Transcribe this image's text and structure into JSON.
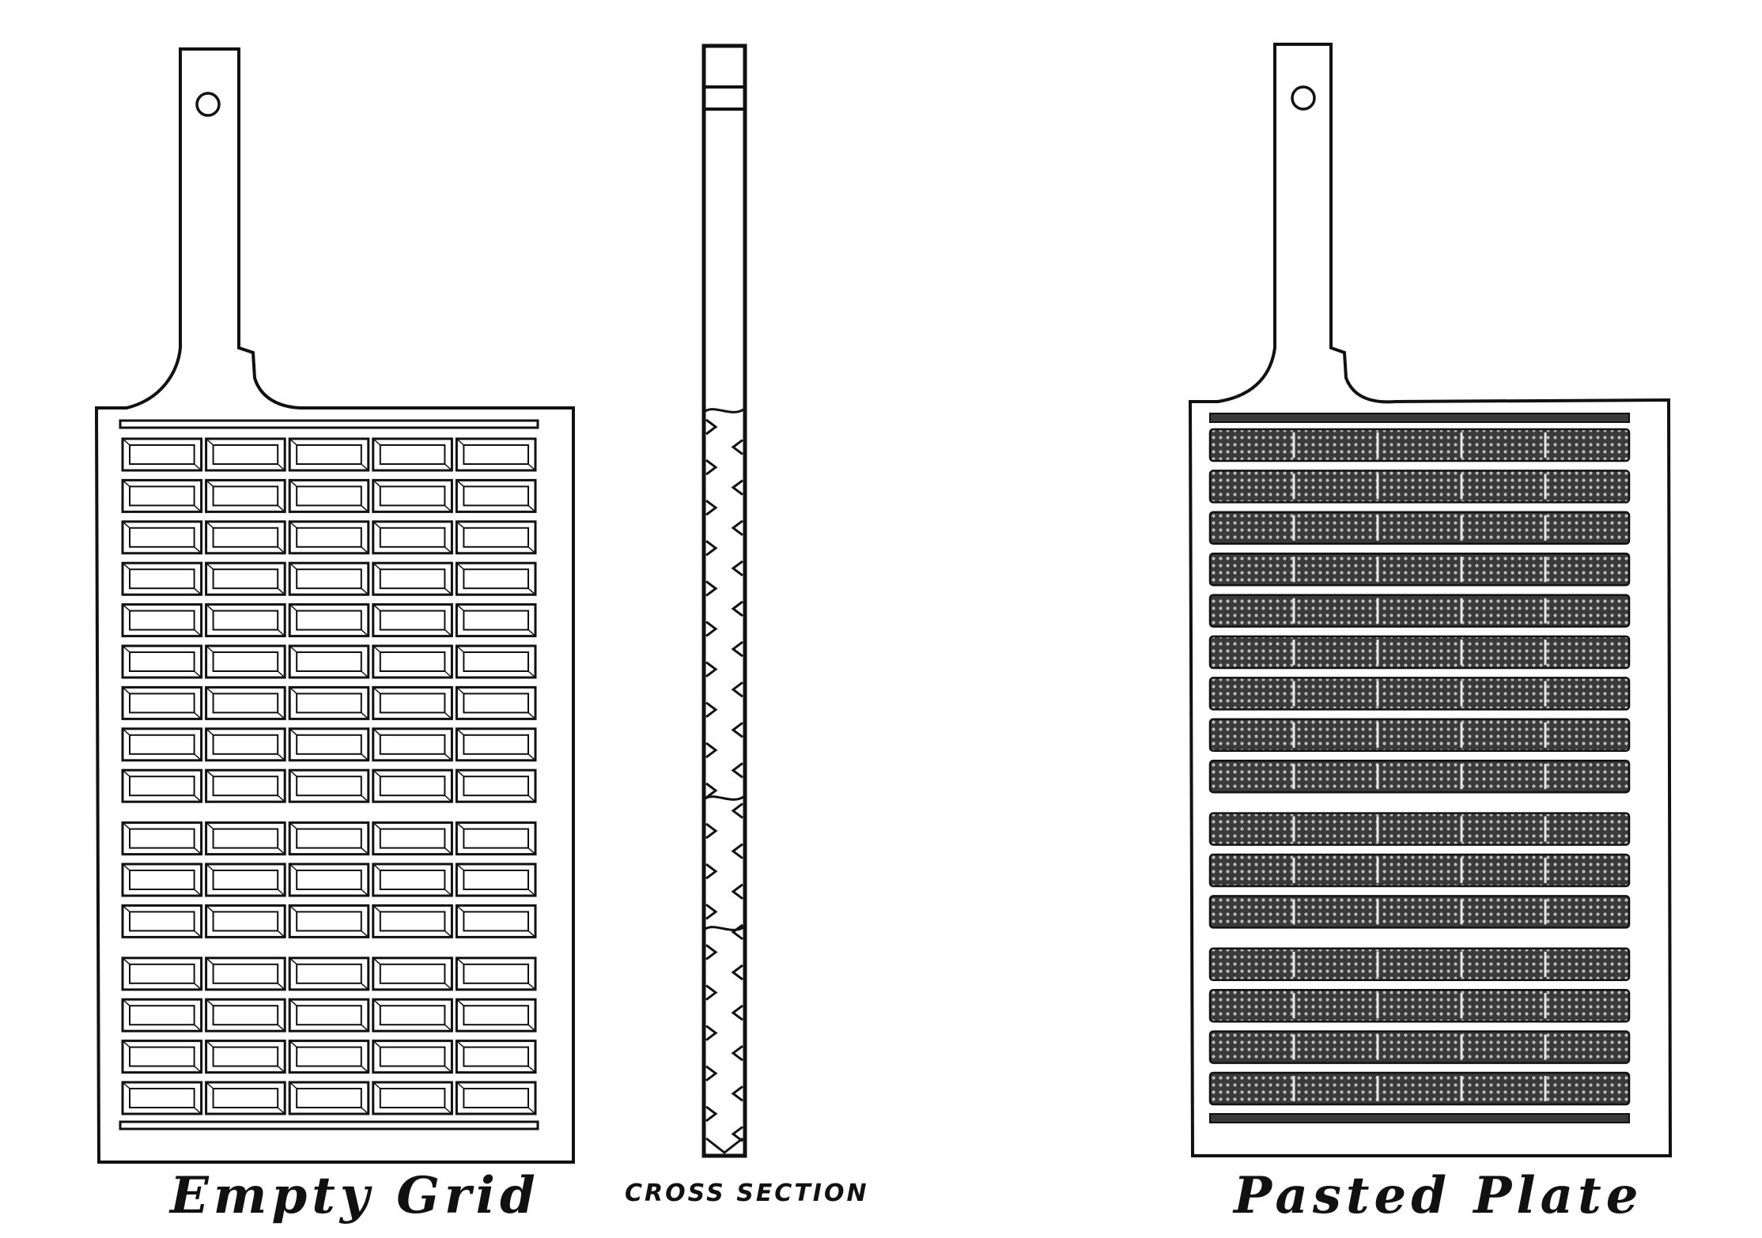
{
  "figure": {
    "stroke_color": "#111111",
    "paste_color": "#3a3a3a",
    "background_color": "#ffffff",
    "grid": {
      "columns": 5,
      "row_groups": [
        9,
        3,
        4
      ]
    },
    "cross_section": {
      "pockets": 18
    }
  },
  "captions": {
    "empty_grid": "Empty Grid",
    "cross_section": "CROSS SECTION",
    "pasted_plate": "Pasted Plate"
  }
}
